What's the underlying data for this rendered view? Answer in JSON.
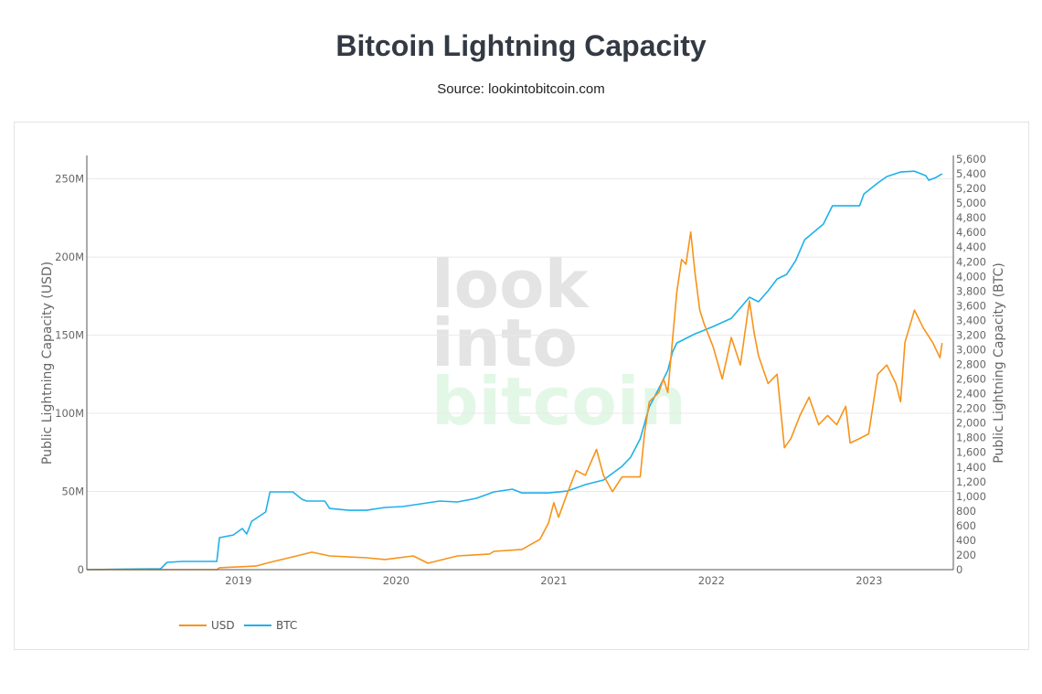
{
  "header": {
    "title": "Bitcoin Lightning Capacity",
    "subtitle": "Source: lookintobitcoin.com"
  },
  "watermark": {
    "line1": "look",
    "line2": "into",
    "line3": "bitcoin"
  },
  "chart_data": {
    "type": "line",
    "title": "Bitcoin Lightning Capacity",
    "ylabel": "Public Lightning Capacity (USD)",
    "y2label": "Public Lightning Capacity (BTC)",
    "xlim": [
      "2018-01-15",
      "2023-07-15"
    ],
    "ylim": [
      0,
      265000000
    ],
    "y2lim": [
      0,
      5650
    ],
    "grid": true,
    "legend": "bottom-left",
    "x_ticks": [
      "2019",
      "2020",
      "2021",
      "2022",
      "2023"
    ],
    "y_ticks": [
      "0",
      "50M",
      "100M",
      "150M",
      "200M",
      "250M"
    ],
    "y_tick_values": [
      0,
      50000000,
      100000000,
      150000000,
      200000000,
      250000000
    ],
    "y2_ticks": [
      "0",
      "200",
      "400",
      "600",
      "800",
      "1,000",
      "1,200",
      "1,400",
      "1,600",
      "1,800",
      "2,000",
      "2,200",
      "2,400",
      "2,600",
      "2,800",
      "3,000",
      "3,200",
      "3,400",
      "3,600",
      "3,800",
      "4,000",
      "4,200",
      "4,400",
      "4,600",
      "4,800",
      "5,000",
      "5,200",
      "5,400",
      "5,600"
    ],
    "colors": {
      "USD": "#f7931a",
      "BTC": "#1eb1ea"
    },
    "series": [
      {
        "name": "USD",
        "axis": "y",
        "points": [
          [
            "2018-01-15",
            0
          ],
          [
            "2018-11-12",
            0
          ],
          [
            "2018-11-18",
            1200000
          ],
          [
            "2019-02-10",
            2300000
          ],
          [
            "2019-03-15",
            4700000
          ],
          [
            "2019-05-07",
            8200000
          ],
          [
            "2019-06-20",
            11200000
          ],
          [
            "2019-07-31",
            8800000
          ],
          [
            "2019-10-24",
            7600000
          ],
          [
            "2019-12-06",
            6500000
          ],
          [
            "2020-02-10",
            8800000
          ],
          [
            "2020-03-15",
            4100000
          ],
          [
            "2020-05-22",
            8800000
          ],
          [
            "2020-08-05",
            10000000
          ],
          [
            "2020-08-15",
            11700000
          ],
          [
            "2020-10-19",
            12900000
          ],
          [
            "2020-11-30",
            19400000
          ],
          [
            "2020-12-20",
            30000000
          ],
          [
            "2021-01-01",
            42800000
          ],
          [
            "2021-01-12",
            33500000
          ],
          [
            "2021-02-01",
            48700000
          ],
          [
            "2021-02-22",
            63400000
          ],
          [
            "2021-03-15",
            60400000
          ],
          [
            "2021-04-10",
            76900000
          ],
          [
            "2021-04-26",
            60400000
          ],
          [
            "2021-05-17",
            49900000
          ],
          [
            "2021-06-08",
            59300000
          ],
          [
            "2021-07-20",
            59300000
          ],
          [
            "2021-07-30",
            86900000
          ],
          [
            "2021-08-10",
            107400000
          ],
          [
            "2021-09-01",
            113300000
          ],
          [
            "2021-09-12",
            122000000
          ],
          [
            "2021-09-22",
            113300000
          ],
          [
            "2021-10-13",
            177800000
          ],
          [
            "2021-10-24",
            198400000
          ],
          [
            "2021-11-03",
            195400000
          ],
          [
            "2021-11-14",
            216000000
          ],
          [
            "2021-11-24",
            189600000
          ],
          [
            "2021-12-05",
            166000000
          ],
          [
            "2021-12-15",
            157300000
          ],
          [
            "2022-01-05",
            142600000
          ],
          [
            "2022-01-26",
            122000000
          ],
          [
            "2022-02-16",
            148500000
          ],
          [
            "2022-03-09",
            130900000
          ],
          [
            "2022-03-30",
            172000000
          ],
          [
            "2022-04-10",
            151400000
          ],
          [
            "2022-04-20",
            136700000
          ],
          [
            "2022-05-12",
            119100000
          ],
          [
            "2022-06-02",
            125000000
          ],
          [
            "2022-06-19",
            78000000
          ],
          [
            "2022-07-04",
            83900000
          ],
          [
            "2022-07-25",
            98600000
          ],
          [
            "2022-08-15",
            110300000
          ],
          [
            "2022-09-06",
            92700000
          ],
          [
            "2022-09-27",
            98600000
          ],
          [
            "2022-10-18",
            92700000
          ],
          [
            "2022-11-08",
            104500000
          ],
          [
            "2022-11-18",
            81000000
          ],
          [
            "2022-12-10",
            83900000
          ],
          [
            "2022-12-31",
            86900000
          ],
          [
            "2023-01-21",
            125000000
          ],
          [
            "2023-02-11",
            130900000
          ],
          [
            "2023-03-04",
            119100000
          ],
          [
            "2023-03-15",
            107400000
          ],
          [
            "2023-03-25",
            145500000
          ],
          [
            "2023-04-16",
            166000000
          ],
          [
            "2023-05-07",
            154300000
          ],
          [
            "2023-05-28",
            145500000
          ],
          [
            "2023-06-14",
            135600000
          ],
          [
            "2023-06-19",
            145000000
          ]
        ]
      },
      {
        "name": "BTC",
        "axis": "y2",
        "points": [
          [
            "2018-01-15",
            0
          ],
          [
            "2018-07-05",
            12
          ],
          [
            "2018-07-20",
            100
          ],
          [
            "2018-08-25",
            112
          ],
          [
            "2018-11-12",
            112
          ],
          [
            "2018-11-18",
            436
          ],
          [
            "2018-12-20",
            473
          ],
          [
            "2019-01-10",
            561
          ],
          [
            "2019-01-20",
            486
          ],
          [
            "2019-02-01",
            661
          ],
          [
            "2019-03-05",
            786
          ],
          [
            "2019-03-15",
            1060
          ],
          [
            "2019-05-07",
            1060
          ],
          [
            "2019-05-28",
            960
          ],
          [
            "2019-06-08",
            935
          ],
          [
            "2019-07-20",
            935
          ],
          [
            "2019-07-31",
            835
          ],
          [
            "2019-09-13",
            810
          ],
          [
            "2019-10-24",
            810
          ],
          [
            "2019-12-06",
            848
          ],
          [
            "2020-01-16",
            860
          ],
          [
            "2020-02-28",
            898
          ],
          [
            "2020-04-11",
            935
          ],
          [
            "2020-05-22",
            923
          ],
          [
            "2020-07-05",
            973
          ],
          [
            "2020-08-15",
            1060
          ],
          [
            "2020-09-27",
            1097
          ],
          [
            "2020-10-19",
            1047
          ],
          [
            "2020-12-20",
            1047
          ],
          [
            "2021-02-01",
            1072
          ],
          [
            "2021-03-15",
            1160
          ],
          [
            "2021-04-26",
            1222
          ],
          [
            "2021-06-08",
            1409
          ],
          [
            "2021-06-28",
            1534
          ],
          [
            "2021-07-20",
            1783
          ],
          [
            "2021-08-10",
            2219
          ],
          [
            "2021-09-01",
            2469
          ],
          [
            "2021-09-22",
            2718
          ],
          [
            "2021-10-03",
            2968
          ],
          [
            "2021-10-13",
            3092
          ],
          [
            "2021-11-24",
            3217
          ],
          [
            "2022-01-05",
            3317
          ],
          [
            "2022-02-16",
            3429
          ],
          [
            "2022-03-30",
            3716
          ],
          [
            "2022-04-20",
            3654
          ],
          [
            "2022-05-12",
            3803
          ],
          [
            "2022-06-02",
            3965
          ],
          [
            "2022-06-24",
            4027
          ],
          [
            "2022-07-15",
            4214
          ],
          [
            "2022-08-05",
            4501
          ],
          [
            "2022-09-17",
            4713
          ],
          [
            "2022-10-08",
            4963
          ],
          [
            "2022-12-10",
            4963
          ],
          [
            "2022-12-20",
            5125
          ],
          [
            "2023-01-21",
            5274
          ],
          [
            "2023-02-11",
            5362
          ],
          [
            "2023-03-15",
            5424
          ],
          [
            "2023-04-16",
            5436
          ],
          [
            "2023-05-12",
            5374
          ],
          [
            "2023-05-19",
            5312
          ],
          [
            "2023-06-05",
            5349
          ],
          [
            "2023-06-19",
            5399
          ]
        ]
      }
    ]
  }
}
